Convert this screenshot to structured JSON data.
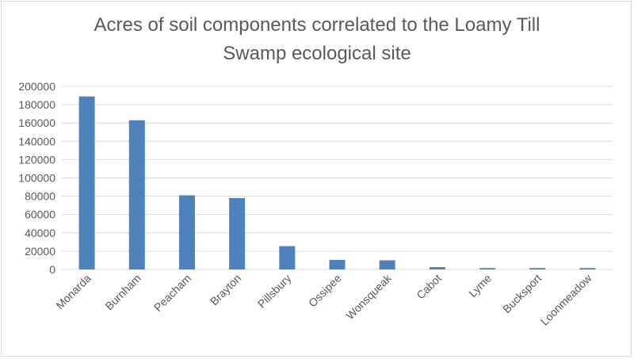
{
  "chart_data": {
    "type": "bar",
    "title_lines": [
      "Acres of soil components correlated to the Loamy Till",
      "Swamp ecological site"
    ],
    "categories": [
      "Monarda",
      "Burnham",
      "Peacham",
      "Brayton",
      "Pillsbury",
      "Ossipee",
      "Wonsqueak",
      "Cabot",
      "Lyme",
      "Bucksport",
      "Loonmeadow"
    ],
    "values": [
      189000,
      163000,
      81000,
      78000,
      25500,
      10500,
      10000,
      2500,
      1500,
      1500,
      1500
    ],
    "xlabel": "",
    "ylabel": "",
    "ylim": [
      0,
      200000
    ],
    "yticks": [
      0,
      20000,
      40000,
      60000,
      80000,
      100000,
      120000,
      140000,
      160000,
      180000,
      200000
    ],
    "grid": true,
    "legend": "none",
    "bar_color": "#4f81bd",
    "grid_color": "#d9d9d9"
  }
}
